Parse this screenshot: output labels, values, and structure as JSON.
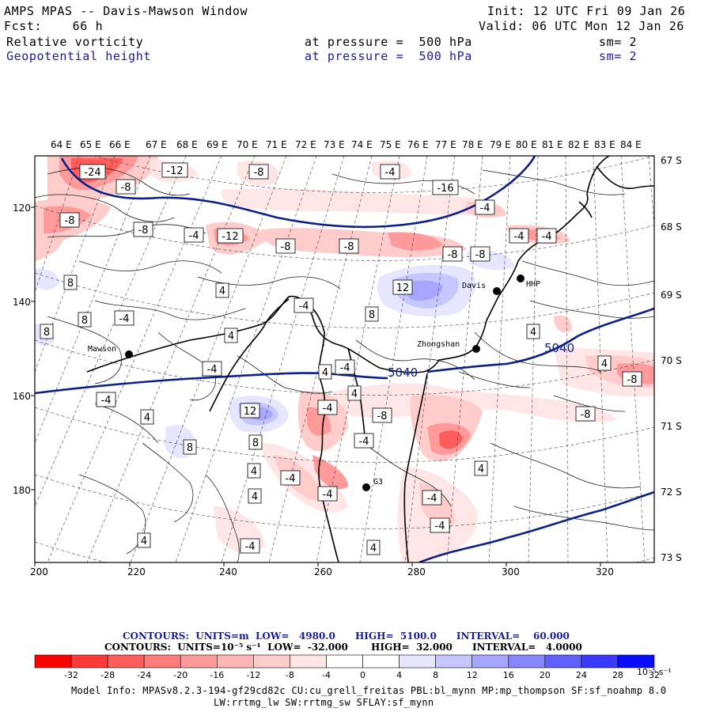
{
  "header": {
    "title": "AMPS MPAS -- Davis-Mawson Window",
    "forecast": "Fcst:    66 h",
    "init": "Init: 12 UTC Fri 09 Jan 26",
    "valid": "Valid: 06 UTC Mon 12 Jan 26",
    "field1_name": "Relative vorticity",
    "field1_level": "at pressure =  500 hPa",
    "field1_sm": "sm= 2",
    "field2_name": "Geopotential height",
    "field2_level": "at pressure =  500 hPa",
    "field2_sm": "sm= 2"
  },
  "map": {
    "lon_labels": [
      "64 E",
      "65 E",
      "66 E",
      "67 E",
      "68 E",
      "69 E",
      "70 E",
      "71 E",
      "72 E",
      "73 E",
      "74 E",
      "75 E",
      "76 E",
      "77 E",
      "78 E",
      "79 E",
      "80 E",
      "81 E",
      "82 E",
      "83 E",
      "84 E"
    ],
    "lat_labels": [
      "67 S",
      "68 S",
      "69 S",
      "70 S",
      "71 S",
      "72 S",
      "73 S"
    ],
    "x_ticks": [
      "200",
      "220",
      "240",
      "260",
      "280",
      "300",
      "320"
    ],
    "y_ticks": [
      "120",
      "140",
      "160",
      "180"
    ],
    "stations": [
      {
        "name": "Mawson"
      },
      {
        "name": "Zhongshan"
      },
      {
        "name": "Davis"
      },
      {
        "name": "HHP"
      },
      {
        "name": "G3"
      }
    ],
    "height_labels": [
      "5040",
      "5040"
    ],
    "vorticity_labels": [
      "-24",
      "-12",
      "-8",
      "-8",
      "-4",
      "-16",
      "-8",
      "-4",
      "-12",
      "-8",
      "-8",
      "-8",
      "-4",
      "-8",
      "-4",
      "-4",
      "-8",
      "8",
      "8",
      "12",
      "4",
      "-4",
      "8",
      "-4",
      "8",
      "4",
      "-4",
      "4",
      "-4",
      "4",
      "4",
      "4",
      "-8",
      "-4",
      "-8",
      "-4",
      "12",
      "8",
      "8",
      "4",
      "-4",
      "4",
      "4",
      "-4",
      "4",
      "-4",
      "-4",
      "-8",
      "-4",
      "-4",
      "4",
      "4"
    ],
    "colors": {
      "height_contour": "#0d1f8c",
      "coast": "#000000"
    }
  },
  "contours_info": {
    "line1": "CONTOURS:  UNITS=m  LOW=   4980.0      HIGH=  5100.0      INTERVAL=    60.000",
    "line2": "CONTOURS:  UNITS=10⁻⁵ s⁻¹  LOW=  -32.000       HIGH=  32.000      INTERVAL=   4.0000"
  },
  "colorbar": {
    "ticks": [
      "-32",
      "-28",
      "-24",
      "-20",
      "-16",
      "-12",
      "-8",
      "-4",
      "0",
      "4",
      "8",
      "12",
      "16",
      "20",
      "24",
      "28",
      "32"
    ],
    "units": "10⁻⁵ s⁻¹",
    "colors": [
      "#ff0000",
      "#ff3838",
      "#ff5c5c",
      "#ff7a7a",
      "#ff9a9a",
      "#ffb5b5",
      "#ffcccc",
      "#ffe6e6",
      "#ffffff",
      "#ffffff",
      "#e6e6ff",
      "#c6c6ff",
      "#a6a6ff",
      "#8585ff",
      "#6060ff",
      "#3939ff",
      "#0a0aff"
    ]
  },
  "model_info": {
    "line1": "Model Info: MPASv8.2.3-194-gf29cd82c CU:cu_grell_freitas PBL:bl_mynn MP:mp_thompson SF:sf_noahmp 8.0",
    "line2": "LW:rrtmg_lw SW:rrtmg_sw SFLAY:sf_mynn"
  }
}
